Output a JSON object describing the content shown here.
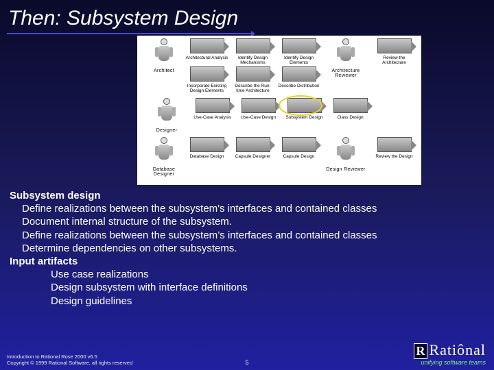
{
  "title": "Then:  Subsystem Design",
  "diagram": {
    "rows": [
      {
        "role": "Architect",
        "activities": [
          "Architectural Analysis",
          "Identify Design Mechanisms",
          "Identify Design Elements",
          "Incorporate Existing Design Elements",
          "Describe the Run-time Architecture",
          "Describe Distribution"
        ],
        "right_role": "Architecture Reviewer",
        "right_activity": "Review the Architecture",
        "two_lines": true
      },
      {
        "role": "Designer",
        "activities": [
          "Use-Case Analysis",
          "Use-Case Design",
          "Subsystem Design",
          "Class Design"
        ],
        "highlight_index": 2
      },
      {
        "role": "Database Designer",
        "activities": [
          "Database Design",
          "Capsule Designer",
          "Capsule Design"
        ],
        "right_role": "Design Reviewer",
        "right_activity": "Review the Design"
      }
    ]
  },
  "content": {
    "section1_title": "Subsystem design",
    "section1_items": [
      "Define realizations between the subsystem's interfaces and contained classes",
      "Document internal structure of the subsystem.",
      "Define realizations between the subsystem’s interfaces and contained classes",
      "Determine dependencies on other subsystems."
    ],
    "section2_title": "Input artifacts",
    "section2_items": [
      "Use case realizations",
      "Design subsystem with interface definitions",
      "Design guidelines"
    ]
  },
  "footer": {
    "line1": "Introduction to Rational Rose 2000 v6.5",
    "line2": "Copyright © 1999 Rational Software, all rights reserved"
  },
  "page": "5",
  "logo": {
    "brand": "Ratiônal",
    "tagline": "unifying software teams"
  }
}
